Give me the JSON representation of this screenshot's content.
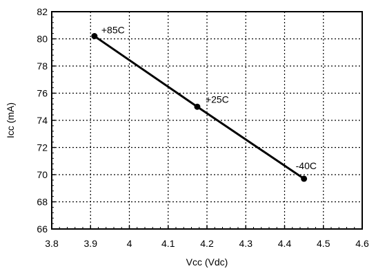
{
  "chart_data": {
    "type": "line",
    "xlabel": "Vcc (Vdc)",
    "ylabel": "Icc (mA)",
    "xlim": [
      3.8,
      4.6
    ],
    "ylim": [
      66,
      82
    ],
    "xticks": [
      "3.8",
      "3.9",
      "4",
      "4.1",
      "4.2",
      "4.3",
      "4.4",
      "4.5",
      "4.6"
    ],
    "yticks": [
      "66",
      "68",
      "70",
      "72",
      "74",
      "76",
      "78",
      "80",
      "82"
    ],
    "grid": true,
    "grid_style": "dotted",
    "series": [
      {
        "x": [
          3.91,
          4.175,
          4.45
        ],
        "y": [
          80.2,
          75.0,
          69.7
        ],
        "labels": [
          "+85C",
          "+25C",
          "-40C"
        ],
        "color": "#000000"
      }
    ]
  }
}
